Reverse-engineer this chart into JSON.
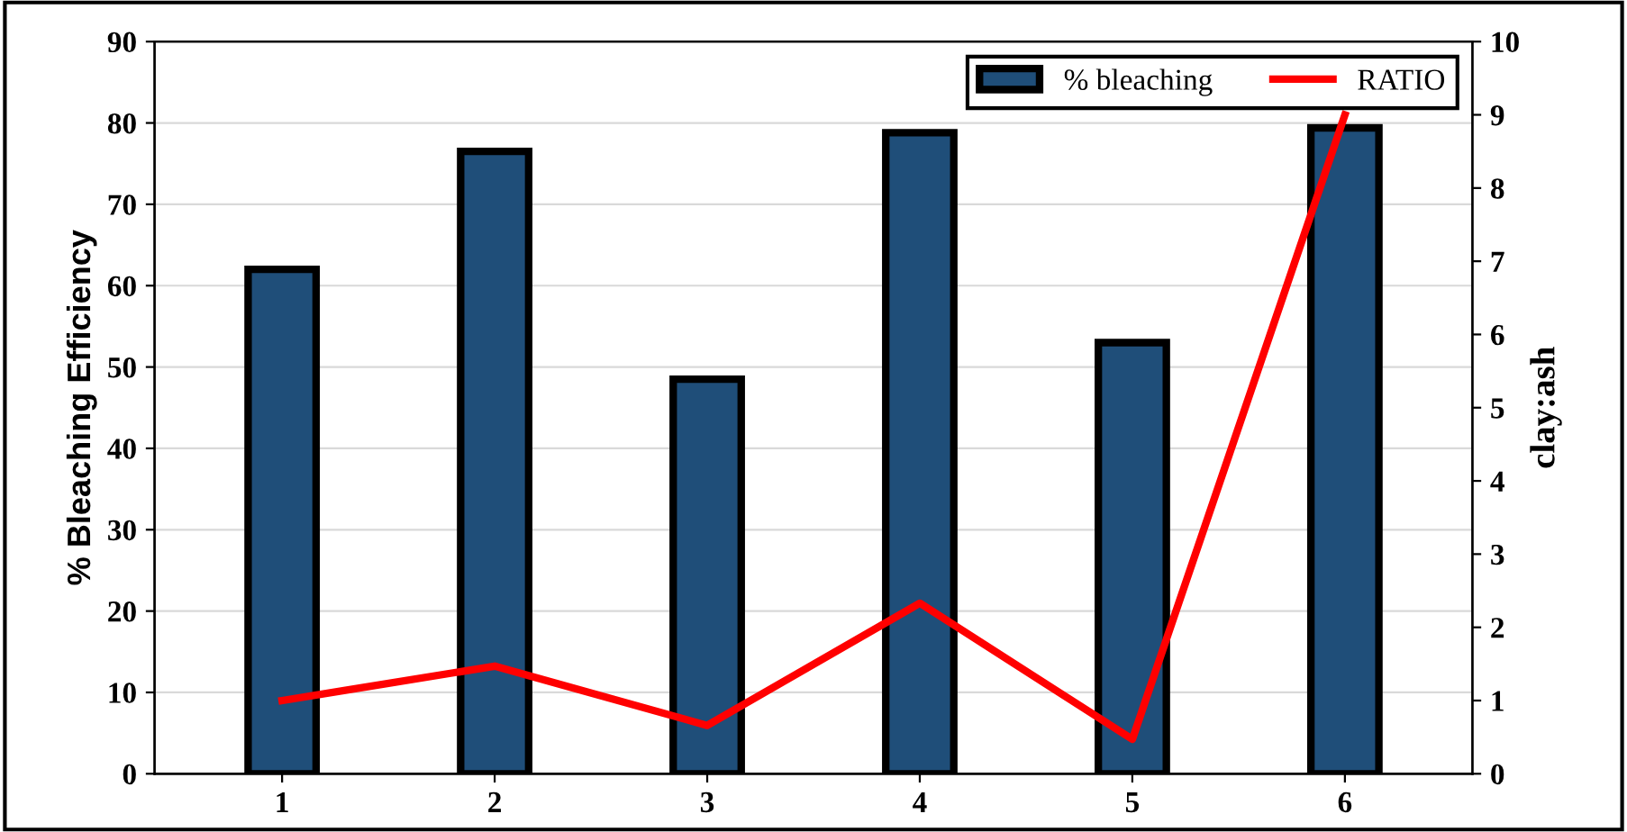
{
  "chart_data": {
    "type": "bar",
    "ylabel": "% Bleaching Efficiency",
    "y2label": "clay:ash",
    "categories": [
      "1",
      "2",
      "3",
      "4",
      "5",
      "6"
    ],
    "series": [
      {
        "name": "% bleaching",
        "color": "#1f4e79",
        "values": [
          62,
          76.5,
          48.5,
          78.8,
          53,
          79.4
        ]
      },
      {
        "name": "RATIO",
        "type": "line",
        "axis": "y2",
        "color": "#ff0000",
        "values": [
          1.0,
          1.47,
          0.66,
          2.33,
          0.47,
          9.0
        ]
      }
    ],
    "ylim": [
      0,
      90
    ],
    "yticks": [
      0,
      10,
      20,
      30,
      40,
      50,
      60,
      70,
      80,
      90
    ],
    "y2lim": [
      0,
      10
    ],
    "y2ticks": [
      0,
      1,
      2,
      3,
      4,
      5,
      6,
      7,
      8,
      9,
      10
    ],
    "grid": "y",
    "legend": "top right",
    "marker": "none"
  }
}
